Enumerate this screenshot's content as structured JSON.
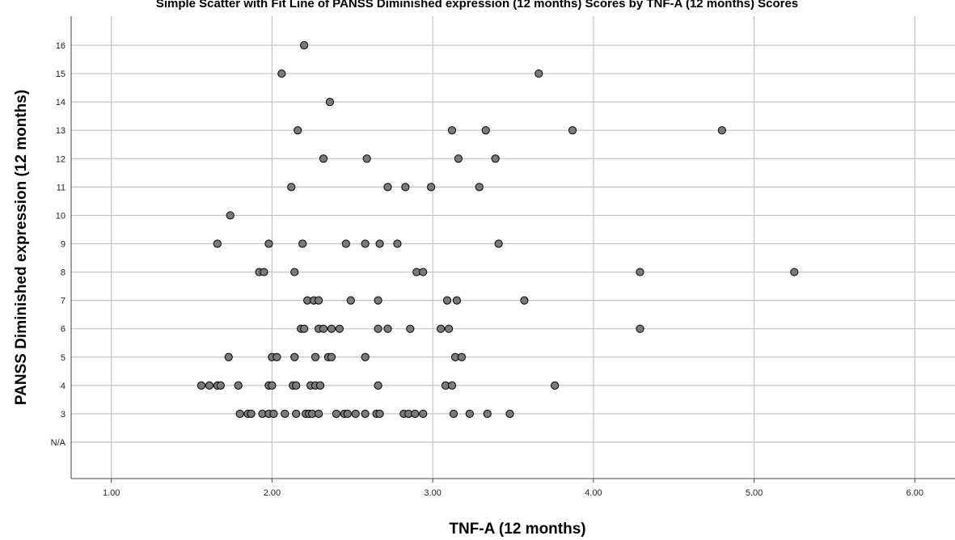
{
  "chart_data": {
    "type": "scatter",
    "title": "Simple Scatter with Fit Line of PANSS Diminished expression (12 months) Scores by TNF-A (12 months) Scores",
    "xlabel": "TNF-A (12 months)",
    "ylabel": "PANSS Diminished expression (12 months)",
    "xlim": [
      0.75,
      6.25
    ],
    "x_ticks": [
      1.0,
      2.0,
      3.0,
      4.0,
      5.0,
      6.0
    ],
    "x_tick_labels": [
      "1.00",
      "2.00",
      "3.00",
      "4.00",
      "5.00",
      "6.00"
    ],
    "y_categories": [
      "N/A",
      "3",
      "4",
      "5",
      "6",
      "7",
      "8",
      "9",
      "10",
      "11",
      "12",
      "13",
      "14",
      "15",
      "16"
    ],
    "grid": true,
    "legend": "none",
    "point_color": "#7a7a7a",
    "points": [
      {
        "x": 2.2,
        "y": "16"
      },
      {
        "x": 2.06,
        "y": "15"
      },
      {
        "x": 3.66,
        "y": "15"
      },
      {
        "x": 2.36,
        "y": "14"
      },
      {
        "x": 2.16,
        "y": "13"
      },
      {
        "x": 3.12,
        "y": "13"
      },
      {
        "x": 3.33,
        "y": "13"
      },
      {
        "x": 3.87,
        "y": "13"
      },
      {
        "x": 4.8,
        "y": "13"
      },
      {
        "x": 2.32,
        "y": "12"
      },
      {
        "x": 2.59,
        "y": "12"
      },
      {
        "x": 3.16,
        "y": "12"
      },
      {
        "x": 3.39,
        "y": "12"
      },
      {
        "x": 2.12,
        "y": "11"
      },
      {
        "x": 2.72,
        "y": "11"
      },
      {
        "x": 2.83,
        "y": "11"
      },
      {
        "x": 2.99,
        "y": "11"
      },
      {
        "x": 3.29,
        "y": "11"
      },
      {
        "x": 1.74,
        "y": "10"
      },
      {
        "x": 1.66,
        "y": "9"
      },
      {
        "x": 1.98,
        "y": "9"
      },
      {
        "x": 2.19,
        "y": "9"
      },
      {
        "x": 2.46,
        "y": "9"
      },
      {
        "x": 2.58,
        "y": "9"
      },
      {
        "x": 2.67,
        "y": "9"
      },
      {
        "x": 2.78,
        "y": "9"
      },
      {
        "x": 3.41,
        "y": "9"
      },
      {
        "x": 1.92,
        "y": "8"
      },
      {
        "x": 1.95,
        "y": "8"
      },
      {
        "x": 2.14,
        "y": "8"
      },
      {
        "x": 2.9,
        "y": "8"
      },
      {
        "x": 2.94,
        "y": "8"
      },
      {
        "x": 4.29,
        "y": "8"
      },
      {
        "x": 5.25,
        "y": "8"
      },
      {
        "x": 2.22,
        "y": "7"
      },
      {
        "x": 2.26,
        "y": "7"
      },
      {
        "x": 2.29,
        "y": "7"
      },
      {
        "x": 2.49,
        "y": "7"
      },
      {
        "x": 2.66,
        "y": "7"
      },
      {
        "x": 3.09,
        "y": "7"
      },
      {
        "x": 3.15,
        "y": "7"
      },
      {
        "x": 3.57,
        "y": "7"
      },
      {
        "x": 2.18,
        "y": "6"
      },
      {
        "x": 2.2,
        "y": "6"
      },
      {
        "x": 2.29,
        "y": "6"
      },
      {
        "x": 2.32,
        "y": "6"
      },
      {
        "x": 2.37,
        "y": "6"
      },
      {
        "x": 2.42,
        "y": "6"
      },
      {
        "x": 2.66,
        "y": "6"
      },
      {
        "x": 2.72,
        "y": "6"
      },
      {
        "x": 2.86,
        "y": "6"
      },
      {
        "x": 3.05,
        "y": "6"
      },
      {
        "x": 3.1,
        "y": "6"
      },
      {
        "x": 4.29,
        "y": "6"
      },
      {
        "x": 1.73,
        "y": "5"
      },
      {
        "x": 2.0,
        "y": "5"
      },
      {
        "x": 2.03,
        "y": "5"
      },
      {
        "x": 2.14,
        "y": "5"
      },
      {
        "x": 2.27,
        "y": "5"
      },
      {
        "x": 2.35,
        "y": "5"
      },
      {
        "x": 2.37,
        "y": "5"
      },
      {
        "x": 2.58,
        "y": "5"
      },
      {
        "x": 3.14,
        "y": "5"
      },
      {
        "x": 3.18,
        "y": "5"
      },
      {
        "x": 1.56,
        "y": "4"
      },
      {
        "x": 1.61,
        "y": "4"
      },
      {
        "x": 1.66,
        "y": "4"
      },
      {
        "x": 1.68,
        "y": "4"
      },
      {
        "x": 1.79,
        "y": "4"
      },
      {
        "x": 1.98,
        "y": "4"
      },
      {
        "x": 2.0,
        "y": "4"
      },
      {
        "x": 2.13,
        "y": "4"
      },
      {
        "x": 2.15,
        "y": "4"
      },
      {
        "x": 2.24,
        "y": "4"
      },
      {
        "x": 2.27,
        "y": "4"
      },
      {
        "x": 2.3,
        "y": "4"
      },
      {
        "x": 2.66,
        "y": "4"
      },
      {
        "x": 3.08,
        "y": "4"
      },
      {
        "x": 3.12,
        "y": "4"
      },
      {
        "x": 3.76,
        "y": "4"
      },
      {
        "x": 1.8,
        "y": "3"
      },
      {
        "x": 1.85,
        "y": "3"
      },
      {
        "x": 1.87,
        "y": "3"
      },
      {
        "x": 1.94,
        "y": "3"
      },
      {
        "x": 1.98,
        "y": "3"
      },
      {
        "x": 2.01,
        "y": "3"
      },
      {
        "x": 2.08,
        "y": "3"
      },
      {
        "x": 2.15,
        "y": "3"
      },
      {
        "x": 2.21,
        "y": "3"
      },
      {
        "x": 2.23,
        "y": "3"
      },
      {
        "x": 2.25,
        "y": "3"
      },
      {
        "x": 2.29,
        "y": "3"
      },
      {
        "x": 2.4,
        "y": "3"
      },
      {
        "x": 2.45,
        "y": "3"
      },
      {
        "x": 2.47,
        "y": "3"
      },
      {
        "x": 2.52,
        "y": "3"
      },
      {
        "x": 2.58,
        "y": "3"
      },
      {
        "x": 2.65,
        "y": "3"
      },
      {
        "x": 2.67,
        "y": "3"
      },
      {
        "x": 2.82,
        "y": "3"
      },
      {
        "x": 2.85,
        "y": "3"
      },
      {
        "x": 2.89,
        "y": "3"
      },
      {
        "x": 2.94,
        "y": "3"
      },
      {
        "x": 3.13,
        "y": "3"
      },
      {
        "x": 3.23,
        "y": "3"
      },
      {
        "x": 3.34,
        "y": "3"
      },
      {
        "x": 3.48,
        "y": "3"
      }
    ]
  }
}
